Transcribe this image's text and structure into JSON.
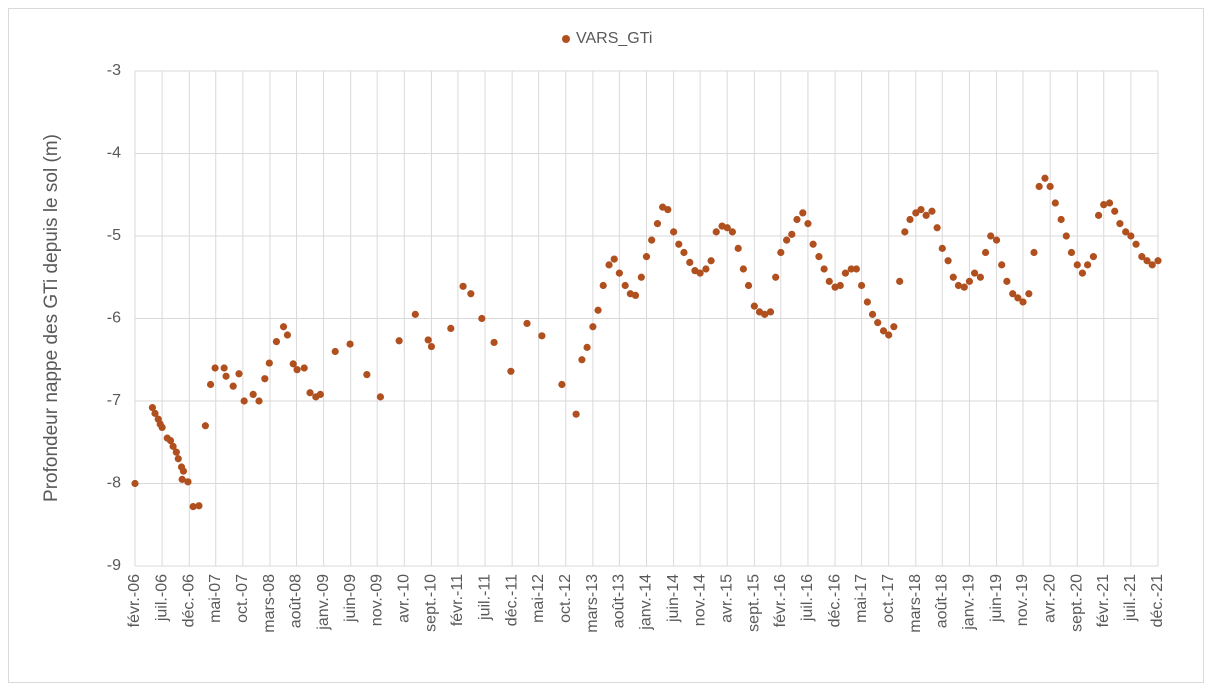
{
  "chart_data": {
    "type": "scatter",
    "y_label": "Profondeur nappe des GTi depuis le sol (m)",
    "legend": "top",
    "grid": true,
    "ylim": [
      -9,
      -3
    ],
    "yticks": [
      -3,
      -4,
      -5,
      -6,
      -7,
      -8,
      -9
    ],
    "xlim": [
      2006.08,
      2021.92
    ],
    "xticks": [
      {
        "value": 2006.08,
        "label": "févr.-06"
      },
      {
        "value": 2006.5,
        "label": "juil.-06"
      },
      {
        "value": 2006.92,
        "label": "déc.-06"
      },
      {
        "value": 2007.33,
        "label": "mai-07"
      },
      {
        "value": 2007.75,
        "label": "oct.-07"
      },
      {
        "value": 2008.17,
        "label": "mars-08"
      },
      {
        "value": 2008.58,
        "label": "août-08"
      },
      {
        "value": 2009.0,
        "label": "janv.-09"
      },
      {
        "value": 2009.42,
        "label": "juin-09"
      },
      {
        "value": 2009.83,
        "label": "nov.-09"
      },
      {
        "value": 2010.25,
        "label": "avr.-10"
      },
      {
        "value": 2010.67,
        "label": "sept.-10"
      },
      {
        "value": 2011.08,
        "label": "févr.-11"
      },
      {
        "value": 2011.5,
        "label": "juil.-11"
      },
      {
        "value": 2011.92,
        "label": "déc.-11"
      },
      {
        "value": 2012.33,
        "label": "mai-12"
      },
      {
        "value": 2012.75,
        "label": "oct.-12"
      },
      {
        "value": 2013.17,
        "label": "mars-13"
      },
      {
        "value": 2013.58,
        "label": "août-13"
      },
      {
        "value": 2014.0,
        "label": "janv.-14"
      },
      {
        "value": 2014.42,
        "label": "juin-14"
      },
      {
        "value": 2014.83,
        "label": "nov.-14"
      },
      {
        "value": 2015.25,
        "label": "avr.-15"
      },
      {
        "value": 2015.67,
        "label": "sept.-15"
      },
      {
        "value": 2016.08,
        "label": "févr.-16"
      },
      {
        "value": 2016.5,
        "label": "juil.-16"
      },
      {
        "value": 2016.92,
        "label": "déc.-16"
      },
      {
        "value": 2017.33,
        "label": "mai-17"
      },
      {
        "value": 2017.75,
        "label": "oct.-17"
      },
      {
        "value": 2018.17,
        "label": "mars-18"
      },
      {
        "value": 2018.58,
        "label": "août-18"
      },
      {
        "value": 2019.0,
        "label": "janv.-19"
      },
      {
        "value": 2019.42,
        "label": "juin-19"
      },
      {
        "value": 2019.83,
        "label": "nov.-19"
      },
      {
        "value": 2020.25,
        "label": "avr.-20"
      },
      {
        "value": 2020.67,
        "label": "sept.-20"
      },
      {
        "value": 2021.08,
        "label": "févr.-21"
      },
      {
        "value": 2021.5,
        "label": "juil.-21"
      },
      {
        "value": 2021.92,
        "label": "déc.-21"
      }
    ],
    "x": [
      2006.08,
      2006.35,
      2006.39,
      2006.44,
      2006.47,
      2006.5,
      2006.58,
      2006.63,
      2006.67,
      2006.72,
      2006.75,
      2006.8,
      2006.81,
      2006.83,
      2006.9,
      2006.98,
      2007.07,
      2007.17,
      2007.25,
      2007.32,
      2007.46,
      2007.49,
      2007.6,
      2007.69,
      2007.77,
      2007.91,
      2008.0,
      2008.09,
      2008.16,
      2008.27,
      2008.38,
      2008.44,
      2008.53,
      2008.59,
      2008.7,
      2008.79,
      2008.88,
      2008.95,
      2009.18,
      2009.41,
      2009.67,
      2009.88,
      2010.17,
      2010.42,
      2010.62,
      2010.67,
      2010.97,
      2011.16,
      2011.28,
      2011.45,
      2011.64,
      2011.9,
      2012.15,
      2012.38,
      2012.69,
      2012.91,
      2013.0,
      2013.08,
      2013.17,
      2013.25,
      2013.33,
      2013.42,
      2013.5,
      2013.58,
      2013.67,
      2013.75,
      2013.83,
      2013.92,
      2014.0,
      2014.08,
      2014.17,
      2014.25,
      2014.33,
      2014.42,
      2014.5,
      2014.58,
      2014.67,
      2014.75,
      2014.83,
      2014.92,
      2015.0,
      2015.08,
      2015.17,
      2015.25,
      2015.33,
      2015.42,
      2015.5,
      2015.58,
      2015.67,
      2015.75,
      2015.83,
      2015.92,
      2016.0,
      2016.08,
      2016.17,
      2016.25,
      2016.33,
      2016.42,
      2016.5,
      2016.58,
      2016.67,
      2016.75,
      2016.83,
      2016.92,
      2017.0,
      2017.08,
      2017.17,
      2017.25,
      2017.33,
      2017.42,
      2017.5,
      2017.58,
      2017.67,
      2017.75,
      2017.83,
      2017.92,
      2018.0,
      2018.08,
      2018.17,
      2018.25,
      2018.33,
      2018.42,
      2018.5,
      2018.58,
      2018.67,
      2018.75,
      2018.83,
      2018.92,
      2019.0,
      2019.08,
      2019.17,
      2019.25,
      2019.33,
      2019.42,
      2019.5,
      2019.58,
      2019.67,
      2019.75,
      2019.83,
      2019.92,
      2020.0,
      2020.08,
      2020.17,
      2020.25,
      2020.33,
      2020.42,
      2020.5,
      2020.58,
      2020.67,
      2020.75,
      2020.83,
      2020.92,
      2021.0,
      2021.08,
      2021.17,
      2021.25,
      2021.33,
      2021.42,
      2021.5,
      2021.58,
      2021.67,
      2021.75,
      2021.83,
      2021.92
    ],
    "series": [
      {
        "name": "VARS_GTi",
        "color": "#b0501f",
        "values": [
          -8.0,
          -7.08,
          -7.15,
          -7.22,
          -7.28,
          -7.32,
          -7.45,
          -7.48,
          -7.55,
          -7.62,
          -7.7,
          -7.8,
          -7.95,
          -7.85,
          -7.98,
          -8.28,
          -8.27,
          -7.3,
          -6.8,
          -6.6,
          -6.6,
          -6.7,
          -6.82,
          -6.67,
          -7.0,
          -6.92,
          -7.0,
          -6.73,
          -6.54,
          -6.28,
          -6.1,
          -6.2,
          -6.55,
          -6.62,
          -6.6,
          -6.9,
          -6.95,
          -6.92,
          -6.4,
          -6.31,
          -6.68,
          -6.95,
          -6.27,
          -5.95,
          -6.26,
          -6.34,
          -6.12,
          -5.61,
          -5.7,
          -6.0,
          -6.29,
          -6.64,
          -6.06,
          -6.21,
          -6.8,
          -7.16,
          -6.5,
          -6.35,
          -6.1,
          -5.9,
          -5.6,
          -5.35,
          -5.28,
          -5.45,
          -5.6,
          -5.7,
          -5.72,
          -5.5,
          -5.25,
          -5.05,
          -4.85,
          -4.65,
          -4.68,
          -4.95,
          -5.1,
          -5.2,
          -5.32,
          -5.42,
          -5.45,
          -5.4,
          -5.3,
          -4.95,
          -4.88,
          -4.9,
          -4.95,
          -5.15,
          -5.4,
          -5.6,
          -5.85,
          -5.92,
          -5.95,
          -5.92,
          -5.5,
          -5.2,
          -5.05,
          -4.98,
          -4.8,
          -4.72,
          -4.85,
          -5.1,
          -5.25,
          -5.4,
          -5.55,
          -5.62,
          -5.6,
          -5.45,
          -5.4,
          -5.4,
          -5.6,
          -5.8,
          -5.95,
          -6.05,
          -6.15,
          -6.2,
          -6.1,
          -5.55,
          -4.95,
          -4.8,
          -4.72,
          -4.68,
          -4.75,
          -4.7,
          -4.9,
          -5.15,
          -5.3,
          -5.5,
          -5.6,
          -5.62,
          -5.55,
          -5.45,
          -5.5,
          -5.2,
          -5.0,
          -5.05,
          -5.35,
          -5.55,
          -5.7,
          -5.75,
          -5.8,
          -5.7,
          -5.2,
          -4.4,
          -4.3,
          -4.4,
          -4.6,
          -4.8,
          -5.0,
          -5.2,
          -5.35,
          -5.45,
          -5.35,
          -5.25,
          -4.75,
          -4.62,
          -4.6,
          -4.7,
          -4.85,
          -4.95,
          -5.0,
          -5.1,
          -5.25,
          -5.3,
          -5.35,
          -5.3
        ]
      }
    ]
  }
}
